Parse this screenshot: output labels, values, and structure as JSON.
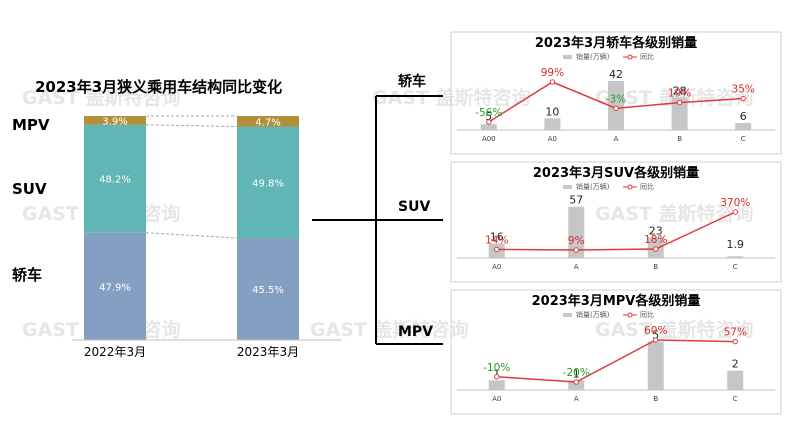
{
  "watermark": "GAST 盖斯特咨询",
  "colors": {
    "sedan": "#839fc1",
    "suv": "#5fb6b4",
    "mpv": "#b38f3a",
    "bar_gray": "#c6c6c6",
    "line_red": "#e03a3a",
    "label_green": "#2a9a2a",
    "label_red": "#d62b2b"
  },
  "chart_data": [
    {
      "type": "bar",
      "stacked": true,
      "normalized_percent": true,
      "title": "2023年3月狭义乘用车结构同比变化",
      "categories": [
        "2022年3月",
        "2023年3月"
      ],
      "series": [
        {
          "name": "轿车",
          "values": [
            47.9,
            45.5
          ],
          "labels": [
            "47.9%",
            "45.5%"
          ]
        },
        {
          "name": "SUV",
          "values": [
            48.2,
            49.8
          ],
          "labels": [
            "48.2%",
            "49.8%"
          ]
        },
        {
          "name": "MPV",
          "values": [
            3.9,
            4.7
          ],
          "labels": [
            "3.9%",
            "4.7%"
          ]
        }
      ],
      "ylim": [
        0,
        100
      ],
      "legend": "left"
    },
    {
      "type": "bar",
      "title": "2023年3月轿车各级别销量",
      "tree_label": "轿车",
      "categories": [
        "A00",
        "A0",
        "A",
        "B",
        "C"
      ],
      "series": [
        {
          "name": "销量(万辆)",
          "values": [
            5,
            10,
            42,
            28,
            6
          ],
          "labels": [
            "5",
            "10",
            "42",
            "28",
            "6"
          ]
        },
        {
          "name": "同比",
          "type": "line",
          "values": [
            -56,
            99,
            -3,
            19,
            35
          ],
          "labels": [
            "-56%",
            "99%",
            "-3%",
            "19%",
            "35%"
          ]
        }
      ],
      "legend": "top"
    },
    {
      "type": "bar",
      "title": "2023年3月SUV各级别销量",
      "tree_label": "SUV",
      "categories": [
        "A0",
        "A",
        "B",
        "C"
      ],
      "series": [
        {
          "name": "销量(万辆)",
          "values": [
            16,
            57,
            23,
            1.9
          ],
          "labels": [
            "16",
            "57",
            "23",
            "1.9"
          ]
        },
        {
          "name": "同比",
          "type": "line",
          "values": [
            14,
            9,
            18,
            370
          ],
          "labels": [
            "14%",
            "9%",
            "18%",
            "370%"
          ]
        }
      ],
      "legend": "top"
    },
    {
      "type": "bar",
      "title": "2023年3月MPV各级别销量",
      "tree_label": "MPV",
      "categories": [
        "A0",
        "A",
        "B",
        "C"
      ],
      "series": [
        {
          "name": "销量(万辆)",
          "values": [
            1,
            1,
            5,
            2
          ],
          "labels": [
            "1",
            "1",
            "5",
            "2"
          ]
        },
        {
          "name": "同比",
          "type": "line",
          "values": [
            -10,
            -20,
            60,
            57
          ],
          "labels": [
            "-10%",
            "-20%",
            "60%",
            "57%"
          ]
        }
      ],
      "legend": "top"
    }
  ]
}
